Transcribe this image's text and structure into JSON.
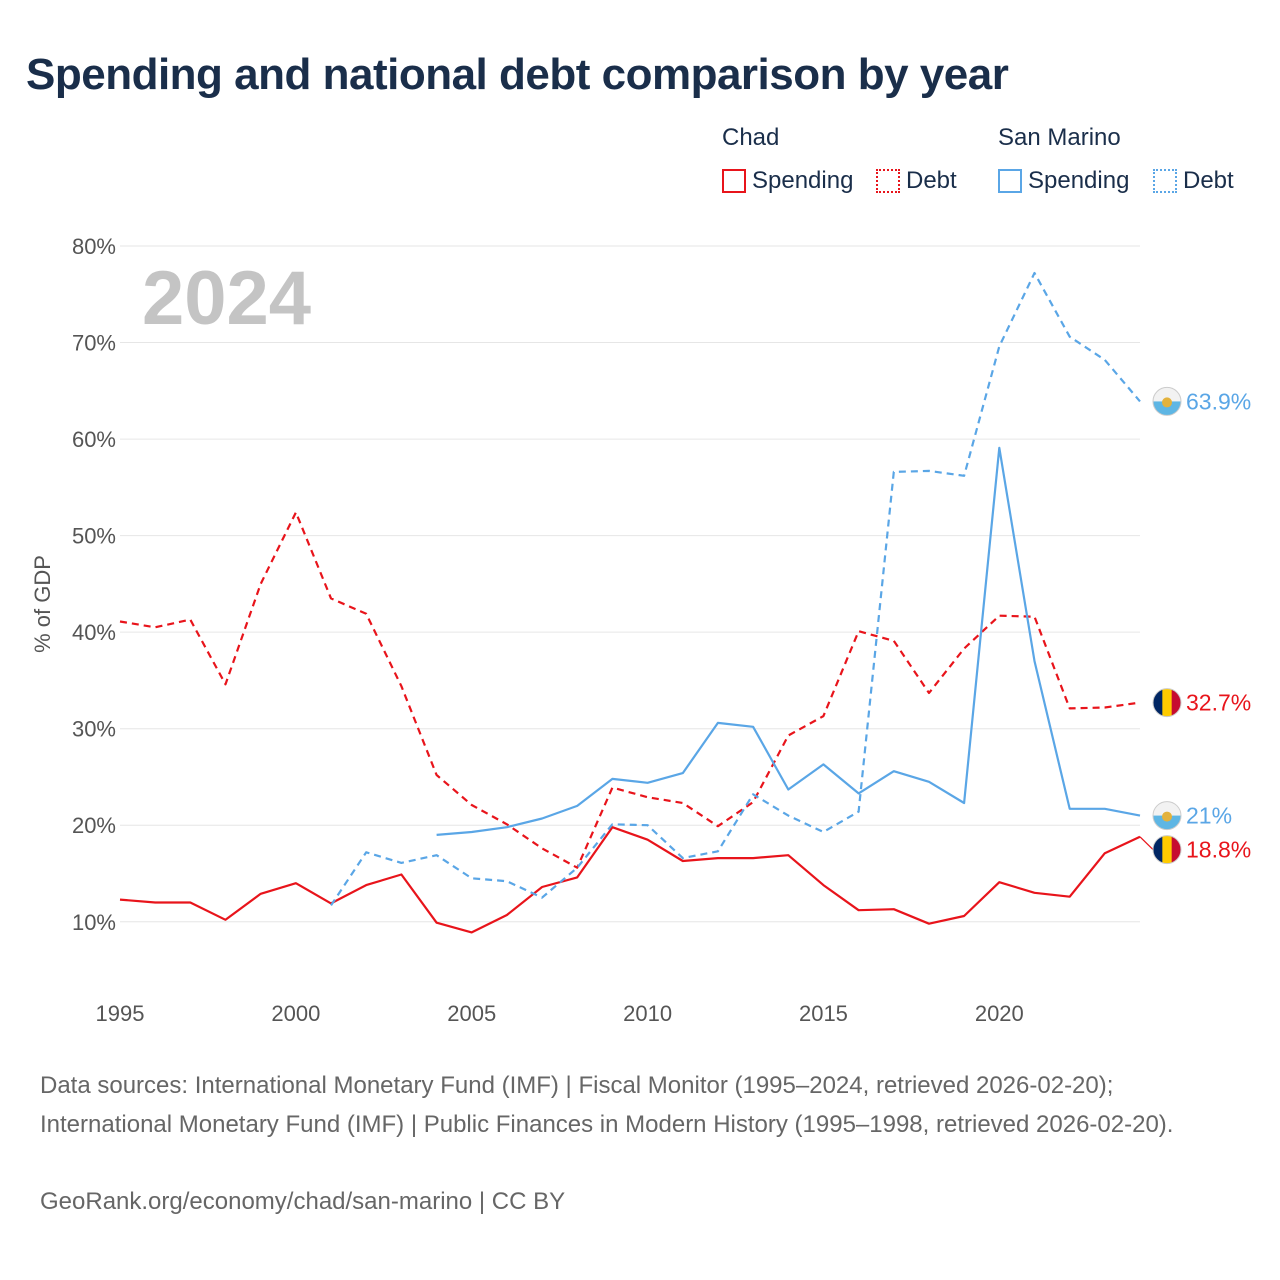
{
  "title": "Spending and national debt comparison by year",
  "legend": {
    "groups": [
      {
        "country": "Chad",
        "color": "#e8141b",
        "items": [
          {
            "label": "Spending",
            "style": "solid"
          },
          {
            "label": "Debt",
            "style": "dotted"
          }
        ]
      },
      {
        "country": "San Marino",
        "color": "#5aa6e6",
        "items": [
          {
            "label": "Spending",
            "style": "solid"
          },
          {
            "label": "Debt",
            "style": "dotted"
          }
        ]
      }
    ]
  },
  "chart_data": {
    "type": "line",
    "year_label": "2024",
    "ylabel": "% of GDP",
    "xlim": [
      1995,
      2024
    ],
    "ylim": [
      2,
      80
    ],
    "x_ticks": [
      1995,
      2000,
      2005,
      2010,
      2015,
      2020
    ],
    "y_ticks": [
      10,
      20,
      30,
      40,
      50,
      60,
      70,
      80
    ],
    "y_tick_labels": [
      "10%",
      "20%",
      "30%",
      "40%",
      "50%",
      "60%",
      "70%",
      "80%"
    ],
    "series": [
      {
        "name": "Chad Spending",
        "country": "Chad",
        "metric": "Spending",
        "color": "#e8141b",
        "dash": "solid",
        "x": [
          1995,
          1996,
          1997,
          1998,
          1999,
          2000,
          2001,
          2002,
          2003,
          2004,
          2005,
          2006,
          2007,
          2008,
          2009,
          2010,
          2011,
          2012,
          2013,
          2014,
          2015,
          2016,
          2017,
          2018,
          2019,
          2020,
          2021,
          2022,
          2023,
          2024
        ],
        "values": [
          12.3,
          12.0,
          12.0,
          10.2,
          12.9,
          14.0,
          11.9,
          13.8,
          14.9,
          9.9,
          8.9,
          10.7,
          13.6,
          14.6,
          19.8,
          18.5,
          16.3,
          16.6,
          16.6,
          16.9,
          13.8,
          11.2,
          11.3,
          9.8,
          10.6,
          14.1,
          13.0,
          12.6,
          17.1,
          18.8
        ],
        "end_label": "18.8%"
      },
      {
        "name": "Chad Debt",
        "country": "Chad",
        "metric": "Debt",
        "color": "#e8141b",
        "dash": "dashed",
        "x": [
          1995,
          1996,
          1997,
          1998,
          1999,
          2000,
          2001,
          2002,
          2003,
          2004,
          2005,
          2006,
          2007,
          2008,
          2009,
          2010,
          2011,
          2012,
          2013,
          2014,
          2015,
          2016,
          2017,
          2018,
          2019,
          2020,
          2021,
          2022,
          2023,
          2024
        ],
        "values": [
          41.1,
          40.5,
          41.3,
          34.6,
          45.0,
          52.4,
          43.5,
          41.9,
          34.4,
          25.2,
          22.1,
          20.1,
          17.6,
          15.6,
          23.9,
          22.9,
          22.3,
          19.9,
          22.4,
          29.3,
          31.3,
          40.1,
          39.1,
          33.7,
          38.3,
          41.7,
          41.6,
          32.1,
          32.2,
          32.7
        ],
        "end_label": "32.7%"
      },
      {
        "name": "San Marino Spending",
        "country": "San Marino",
        "metric": "Spending",
        "color": "#5aa6e6",
        "dash": "solid",
        "x": [
          2004,
          2005,
          2006,
          2007,
          2008,
          2009,
          2010,
          2011,
          2012,
          2013,
          2014,
          2015,
          2016,
          2017,
          2018,
          2019,
          2020,
          2021,
          2022,
          2023,
          2024
        ],
        "values": [
          19.0,
          19.3,
          19.8,
          20.7,
          22.0,
          24.8,
          24.4,
          25.4,
          30.6,
          30.2,
          23.7,
          26.3,
          23.3,
          25.6,
          24.5,
          22.3,
          59.1,
          37.0,
          21.7,
          21.7,
          21.0
        ],
        "end_label": "21%"
      },
      {
        "name": "San Marino Debt",
        "country": "San Marino",
        "metric": "Debt",
        "color": "#5aa6e6",
        "dash": "dashed",
        "x": [
          2001,
          2002,
          2003,
          2004,
          2005,
          2006,
          2007,
          2008,
          2009,
          2010,
          2011,
          2012,
          2013,
          2014,
          2015,
          2016,
          2017,
          2018,
          2019,
          2020,
          2021,
          2022,
          2023,
          2024
        ],
        "values": [
          11.7,
          17.2,
          16.1,
          16.9,
          14.5,
          14.2,
          12.5,
          15.6,
          20.1,
          20.0,
          16.6,
          17.3,
          23.2,
          21.0,
          19.3,
          21.4,
          56.6,
          56.7,
          56.2,
          69.6,
          77.2,
          70.6,
          68.2,
          63.9
        ],
        "end_label": "63.9%"
      }
    ]
  },
  "footer": {
    "sources": "Data sources: International Monetary Fund (IMF) | Fiscal Monitor (1995–2024, retrieved 2026-02-20); International Monetary Fund (IMF) | Public Finances in Modern History (1995–1998, retrieved 2026-02-20).",
    "credit": "GeoRank.org/economy/chad/san-marino | CC BY"
  }
}
